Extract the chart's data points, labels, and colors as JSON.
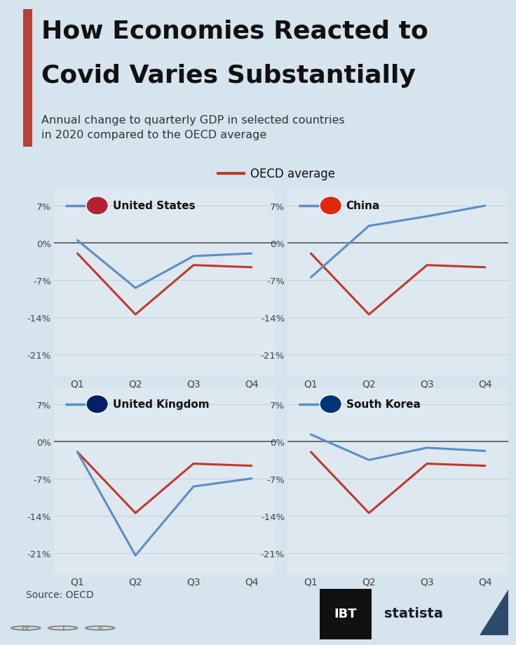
{
  "title_line1": "How Economies Reacted to",
  "title_line2": "Covid Varies Substantially",
  "subtitle": "Annual change to quarterly GDP in selected countries\nin 2020 compared to the OECD average",
  "legend_label": "OECD average",
  "background_color": "#d6e4ed",
  "panel_color": "#dde8f0",
  "quarters": [
    "Q1",
    "Q2",
    "Q3",
    "Q4"
  ],
  "oecd": [
    -2.0,
    -13.5,
    -4.2,
    -4.6
  ],
  "countries": [
    {
      "name": "United States",
      "flag_text": "🇺🇸",
      "values": [
        0.5,
        -8.5,
        -2.5,
        -2.0
      ]
    },
    {
      "name": "China",
      "flag_text": "🇨🇳",
      "values": [
        -6.5,
        3.2,
        5.0,
        7.0
      ]
    },
    {
      "name": "United Kingdom",
      "flag_text": "🇬🇧",
      "values": [
        -2.0,
        -21.5,
        -8.5,
        -7.0
      ]
    },
    {
      "name": "South Korea",
      "flag_text": "🇰🇷",
      "values": [
        1.3,
        -3.5,
        -1.2,
        -1.8
      ]
    }
  ],
  "yticks": [
    -21,
    -14,
    -7,
    0,
    7
  ],
  "ylim": [
    -25,
    10
  ],
  "country_line_color": "#5b8dc8",
  "oecd_line_color": "#c0392b",
  "title_color": "#111111",
  "subtitle_color": "#333333",
  "accent_bar_color": "#b5413a",
  "source_text": "Source: OECD",
  "footer_bg": "#e8f0f5"
}
